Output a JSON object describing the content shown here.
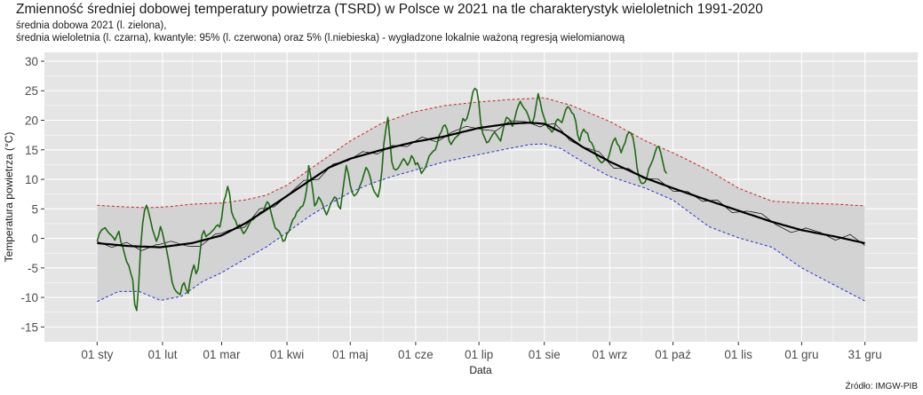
{
  "title": "Zmienność średniej dobowej temperatury powietrza (TSRD) w Polsce w 2021 na tle charakterystyk wieloletnich 1991-2020",
  "subtitle_line1": "średnia dobowa 2021 (l. zielona),",
  "subtitle_line2": "średnia wieloletnia (l. czarna), kwantyle: 95% (l. czerwona) oraz 5% (l.niebieska) - wygładzone lokalnie ważoną regresją wielomianową",
  "source": "Źródło: IMGW-PIB",
  "colors": {
    "panel": "#e5e5e5",
    "grid": "#ffffff",
    "band": "#d3d3d3",
    "daily_2021": "#1d6b12",
    "mean_smooth": "#000000",
    "mean_raw": "#000000",
    "q95": "#cc2020",
    "q5": "#2233cc"
  },
  "chart_data": {
    "type": "line",
    "xlabel": "Data",
    "ylabel": "Temperatura powietrza (°C)",
    "xlim": [
      -25,
      389
    ],
    "ylim": [
      -17.5,
      31.5
    ],
    "x_ticks": [
      {
        "day": 0,
        "label": "01 sty"
      },
      {
        "day": 31,
        "label": "01 lut"
      },
      {
        "day": 59,
        "label": "01 mar"
      },
      {
        "day": 90,
        "label": "01 kwi"
      },
      {
        "day": 120,
        "label": "01 maj"
      },
      {
        "day": 151,
        "label": "01 cze"
      },
      {
        "day": 181,
        "label": "01 lip"
      },
      {
        "day": 212,
        "label": "01 sie"
      },
      {
        "day": 243,
        "label": "01 wrz"
      },
      {
        "day": 273,
        "label": "01 paź"
      },
      {
        "day": 304,
        "label": "01 lis"
      },
      {
        "day": 334,
        "label": "01 gru"
      },
      {
        "day": 364,
        "label": "31 gru"
      }
    ],
    "y_ticks": [
      -15,
      -10,
      -5,
      0,
      5,
      10,
      15,
      20,
      25,
      30
    ],
    "q95": {
      "name": "kwantyl 95%",
      "x": [
        0,
        15,
        25,
        35,
        45,
        59,
        70,
        80,
        90,
        100,
        110,
        120,
        135,
        150,
        165,
        181,
        195,
        212,
        225,
        243,
        260,
        273,
        290,
        304,
        320,
        334,
        350,
        364
      ],
      "y": [
        5.6,
        5.3,
        5.2,
        5.4,
        5.8,
        6.0,
        6.5,
        7.3,
        9.0,
        11.5,
        14.0,
        16.5,
        19.5,
        21.4,
        22.5,
        23.1,
        23.5,
        23.8,
        22.5,
        19.8,
        16.5,
        14.5,
        11.5,
        8.5,
        6.3,
        6.0,
        5.8,
        5.5
      ]
    },
    "q5": {
      "name": "kwantyl 5%",
      "x": [
        0,
        10,
        20,
        30,
        40,
        50,
        59,
        70,
        80,
        90,
        100,
        110,
        120,
        130,
        140,
        150,
        165,
        181,
        195,
        205,
        212,
        220,
        230,
        243,
        260,
        273,
        290,
        304,
        320,
        334,
        350,
        364
      ],
      "y": [
        -10.7,
        -9.0,
        -9.0,
        -10.5,
        -9.8,
        -7.3,
        -5.8,
        -3.5,
        -1.5,
        1.0,
        3.6,
        5.8,
        7.8,
        9.3,
        10.5,
        11.5,
        13.0,
        14.2,
        15.2,
        15.9,
        16.0,
        15.2,
        13.0,
        10.5,
        8.5,
        6.5,
        2.0,
        0.1,
        -1.5,
        -5.0,
        -8.0,
        -10.6
      ]
    },
    "mean_smooth": {
      "name": "średnia wieloletnia",
      "x": [
        0,
        15,
        30,
        45,
        59,
        70,
        80,
        90,
        100,
        110,
        120,
        135,
        150,
        165,
        181,
        195,
        205,
        212,
        220,
        230,
        243,
        260,
        273,
        290,
        304,
        320,
        334,
        350,
        364
      ],
      "y": [
        -0.8,
        -1.3,
        -1.5,
        -0.8,
        0.5,
        2.5,
        4.8,
        7.2,
        9.6,
        12.0,
        13.5,
        15.0,
        16.3,
        17.3,
        18.7,
        19.4,
        19.6,
        19.4,
        18.0,
        15.5,
        13.0,
        10.2,
        8.5,
        6.4,
        4.7,
        2.8,
        1.4,
        0.3,
        -0.8
      ]
    },
    "daily_2021": {
      "name": "średnia dobowa 2021",
      "x_range": [
        0,
        270
      ],
      "y": [
        -0.5,
        0.7,
        1.3,
        1.6,
        1.8,
        1.3,
        0.9,
        0.6,
        0.2,
        -0.3,
        0.5,
        1.2,
        -0.6,
        -1.5,
        -2.8,
        -4.0,
        -4.6,
        -5.9,
        -7.0,
        -11.2,
        -12.2,
        -8.0,
        -1.5,
        2.5,
        4.8,
        5.6,
        4.5,
        3.0,
        1.5,
        0.5,
        -0.5,
        0.4,
        2.0,
        1.0,
        -0.5,
        -1.8,
        -3.5,
        -5.5,
        -7.5,
        -8.5,
        -9.0,
        -9.3,
        -9.5,
        -8.0,
        -7.5,
        -8.6,
        -9.3,
        -7.0,
        -5.5,
        -4.5,
        -6.0,
        -5.2,
        -2.5,
        0.5,
        1.3,
        0.3,
        0.6,
        0.8,
        1.2,
        1.5,
        2.0,
        2.3,
        1.9,
        3.5,
        6.2,
        7.2,
        8.8,
        7.5,
        4.5,
        3.5,
        3.0,
        2.0,
        2.3,
        1.5,
        0.8,
        1.2,
        1.8,
        2.5,
        3.1,
        3.2,
        3.6,
        3.9,
        4.3,
        4.5,
        4.5,
        5.5,
        6.2,
        5.8,
        4.3,
        3.0,
        1.8,
        1.5,
        1.2,
        0.5,
        -0.5,
        -0.3,
        0.8,
        1.2,
        2.3,
        3.2,
        3.6,
        4.5,
        4.8,
        5.3,
        5.5,
        6.5,
        8.4,
        12.3,
        10.5,
        8.2,
        5.5,
        6.0,
        7.0,
        6.5,
        5.8,
        4.8,
        4.0,
        4.8,
        5.8,
        6.4,
        7.0,
        6.8,
        5.5,
        5.0,
        7.5,
        10.0,
        12.3,
        11.0,
        9.0,
        7.8,
        7.2,
        7.5,
        8.0,
        9.0,
        9.8,
        11.0,
        12.0,
        11.5,
        10.5,
        9.0,
        8.0,
        7.5,
        7.0,
        8.5,
        11.5,
        16.0,
        18.5,
        20.5,
        17.0,
        13.0,
        11.8,
        11.6,
        11.8,
        12.3,
        13.0,
        13.5,
        13.0,
        12.4,
        13.0,
        14.0,
        13.5,
        12.5,
        12.8,
        12.0,
        11.0,
        11.5,
        12.0,
        13.0,
        14.0,
        14.4,
        14.8,
        15.0,
        16.0,
        17.5,
        18.0,
        19.0,
        19.2,
        18.4,
        16.5,
        15.9,
        16.5,
        17.0,
        17.3,
        17.6,
        19.0,
        20.3,
        19.9,
        20.3,
        21.5,
        23.0,
        24.8,
        25.4,
        25.1,
        23.0,
        19.5,
        17.8,
        17.0,
        16.2,
        16.4,
        17.0,
        17.6,
        18.0,
        17.5,
        17.0,
        16.5,
        18.0,
        19.4,
        20.5,
        20.3,
        19.9,
        19.0,
        20.0,
        21.5,
        22.5,
        23.2,
        22.5,
        22.0,
        21.6,
        20.8,
        19.8,
        19.5,
        20.5,
        22.5,
        24.5,
        23.2,
        21.5,
        20.5,
        19.5,
        18.7,
        18.5,
        18.0,
        18.5,
        19.8,
        20.2,
        19.9,
        19.6,
        20.7,
        21.8,
        22.3,
        22.0,
        21.3,
        21.0,
        19.8,
        17.5,
        16.5,
        17.8,
        18.5,
        18.0,
        17.8,
        16.5,
        16.2,
        15.5,
        14.3,
        13.6,
        13.2,
        12.8,
        13.0,
        13.5,
        13.2,
        14.2,
        15.5,
        16.5,
        17.0,
        16.0,
        15.6,
        14.5,
        15.5,
        16.2,
        17.5,
        18.0,
        17.8,
        17.0,
        15.0,
        12.0,
        10.3,
        9.4,
        9.3,
        9.5,
        10.3,
        11.8,
        12.5,
        13.3,
        14.4,
        15.4,
        15.6,
        14.5,
        13.0,
        11.5,
        11.0
      ]
    },
    "mean_raw_offsets": [
      0.3,
      -0.5,
      0.6,
      -0.7,
      0.4,
      0.8,
      -0.3,
      -0.9,
      0.5,
      0.2,
      -0.6,
      0.9,
      -0.4,
      0.1,
      0.7,
      -0.8,
      0.3,
      -0.2,
      0.6,
      -0.5
    ]
  }
}
